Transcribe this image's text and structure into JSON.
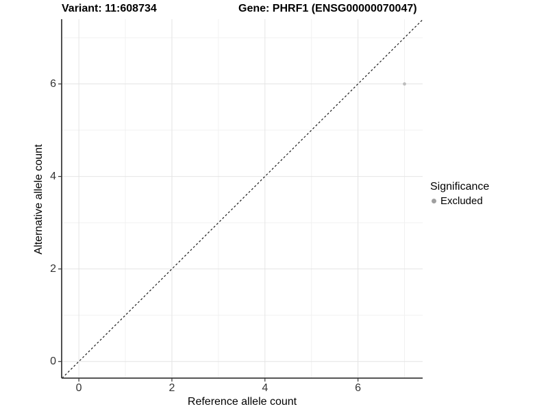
{
  "header": {
    "title_left": "Variant: 11:608734",
    "title_right": "Gene: PHRF1 (ENSG00000070047)"
  },
  "chart_data": {
    "type": "scatter",
    "title": "Variant: 11:608734 | Gene: PHRF1 (ENSG00000070047)",
    "xlabel": "Reference allele count",
    "ylabel": "Alternative allele count",
    "xlim": [
      -0.37,
      7.39
    ],
    "ylim": [
      -0.36,
      7.4
    ],
    "x_ticks": [
      0,
      2,
      4,
      6
    ],
    "y_ticks": [
      0,
      2,
      4,
      6
    ],
    "x_minor_ticks": [
      1,
      3,
      5,
      7
    ],
    "y_minor_ticks": [
      1,
      3,
      5,
      7
    ],
    "grid": true,
    "series": [
      {
        "name": "Excluded",
        "points": [
          {
            "x": 7,
            "y": 6
          }
        ],
        "color": "#bdbdbd",
        "point_radius": 2.4
      }
    ],
    "reference_line": {
      "kind": "identity",
      "slope": 1,
      "intercept": 0,
      "style": "dashed",
      "color": "#1a1a1a"
    },
    "legend": {
      "title": "Significance",
      "position": "right",
      "items": [
        {
          "label": "Excluded",
          "color": "#a0a0a0"
        }
      ]
    },
    "colors": {
      "background": "#ffffff",
      "grid_major": "#e4e4e4",
      "grid_minor": "#f1f1f1",
      "axis_line": "#3d3d3d",
      "tick_mark": "#333333",
      "tick_text": "#333333"
    }
  }
}
